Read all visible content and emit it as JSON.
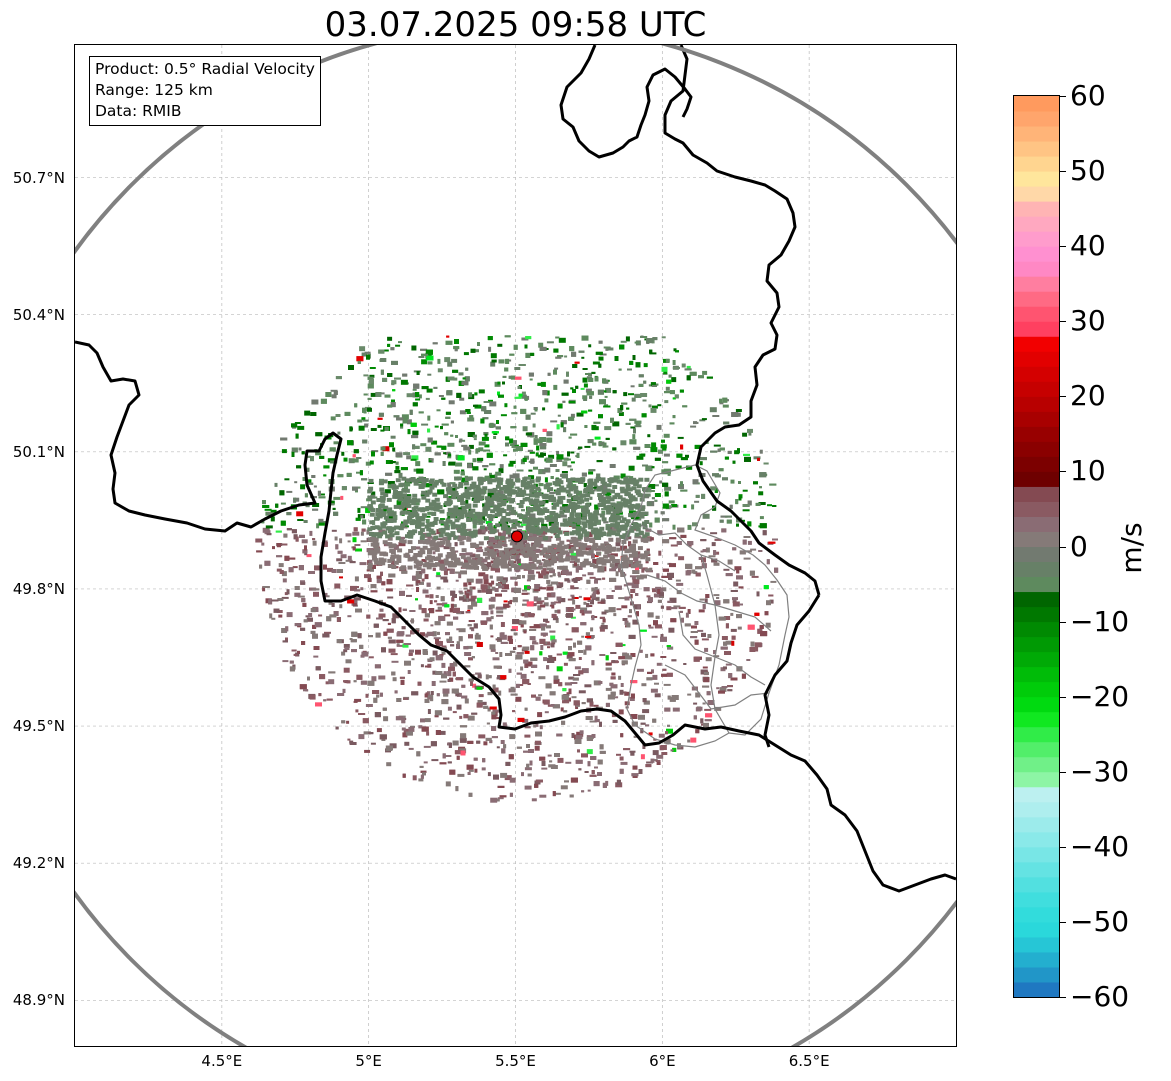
{
  "title": "03.07.2025 09:58 UTC",
  "info_box": {
    "product": "Product: 0.5° Radial Velocity",
    "range": "Range: 125 km",
    "source": "Data: RMIB"
  },
  "map": {
    "extent": {
      "lon_min": 4.0,
      "lon_max": 7.0,
      "lat_min": 48.8,
      "lat_max": 50.99
    },
    "lat_ticks": [
      {
        "value": 50.7,
        "label": "50.7°N"
      },
      {
        "value": 50.4,
        "label": "50.4°N"
      },
      {
        "value": 50.1,
        "label": "50.1°N"
      },
      {
        "value": 49.8,
        "label": "49.8°N"
      },
      {
        "value": 49.5,
        "label": "49.5°N"
      },
      {
        "value": 49.2,
        "label": "49.2°N"
      },
      {
        "value": 48.9,
        "label": "48.9°N"
      }
    ],
    "lon_ticks": [
      {
        "value": 4.5,
        "label": "4.5°E"
      },
      {
        "value": 5.0,
        "label": "5°E"
      },
      {
        "value": 5.5,
        "label": "5.5°E"
      },
      {
        "value": 6.0,
        "label": "6°E"
      },
      {
        "value": 6.5,
        "label": "6.5°E"
      }
    ],
    "gridlines": true,
    "radar_site": {
      "lon": 5.505,
      "lat": 49.915,
      "color": "#e00000"
    },
    "range_ring_color": "#808080",
    "border_color": "#000000",
    "admin_border_color": "#808080"
  },
  "colorbar": {
    "unit": "m/s",
    "min": -60,
    "max": 60,
    "ticks": [
      {
        "value": 60,
        "label": "60"
      },
      {
        "value": 50,
        "label": "50"
      },
      {
        "value": 40,
        "label": "40"
      },
      {
        "value": 30,
        "label": "30"
      },
      {
        "value": 20,
        "label": "20"
      },
      {
        "value": 10,
        "label": "10"
      },
      {
        "value": 0,
        "label": "0"
      },
      {
        "value": -10,
        "label": "−10"
      },
      {
        "value": -20,
        "label": "−20"
      },
      {
        "value": -30,
        "label": "−30"
      },
      {
        "value": -40,
        "label": "−40"
      },
      {
        "value": -50,
        "label": "−50"
      },
      {
        "value": -60,
        "label": "−60"
      }
    ],
    "bins": [
      {
        "from": -60,
        "to": -58,
        "color": "#1f78c1"
      },
      {
        "from": -58,
        "to": -56,
        "color": "#2196c8"
      },
      {
        "from": -56,
        "to": -54,
        "color": "#23afcf"
      },
      {
        "from": -54,
        "to": -52,
        "color": "#26c6d6"
      },
      {
        "from": -52,
        "to": -50,
        "color": "#2ad8db"
      },
      {
        "from": -50,
        "to": -48,
        "color": "#32dcdc"
      },
      {
        "from": -48,
        "to": -46,
        "color": "#40dede"
      },
      {
        "from": -46,
        "to": -44,
        "color": "#52e0e0"
      },
      {
        "from": -44,
        "to": -42,
        "color": "#64e3e3"
      },
      {
        "from": -42,
        "to": -40,
        "color": "#78e6e6"
      },
      {
        "from": -40,
        "to": -38,
        "color": "#8ae9e9"
      },
      {
        "from": -38,
        "to": -36,
        "color": "#9cebeb"
      },
      {
        "from": -36,
        "to": -34,
        "color": "#aeeeee"
      },
      {
        "from": -34,
        "to": -32,
        "color": "#bcf0f0"
      },
      {
        "from": -32,
        "to": -30,
        "color": "#8df5a5"
      },
      {
        "from": -30,
        "to": -28,
        "color": "#70f088"
      },
      {
        "from": -28,
        "to": -26,
        "color": "#52ee6a"
      },
      {
        "from": -26,
        "to": -24,
        "color": "#30ec48"
      },
      {
        "from": -24,
        "to": -22,
        "color": "#10e820"
      },
      {
        "from": -22,
        "to": -20,
        "color": "#00da10"
      },
      {
        "from": -20,
        "to": -18,
        "color": "#00cc0a"
      },
      {
        "from": -18,
        "to": -16,
        "color": "#00bc08"
      },
      {
        "from": -16,
        "to": -14,
        "color": "#00aa06"
      },
      {
        "from": -14,
        "to": -12,
        "color": "#009a04"
      },
      {
        "from": -12,
        "to": -10,
        "color": "#008a02"
      },
      {
        "from": -10,
        "to": -8,
        "color": "#007800"
      },
      {
        "from": -8,
        "to": -6,
        "color": "#006600"
      },
      {
        "from": -6,
        "to": -4,
        "color": "#5e8a5e"
      },
      {
        "from": -4,
        "to": -2,
        "color": "#678067"
      },
      {
        "from": -2,
        "to": 0,
        "color": "#727a70"
      },
      {
        "from": 0,
        "to": 2,
        "color": "#857a78"
      },
      {
        "from": 2,
        "to": 4,
        "color": "#8a6c74"
      },
      {
        "from": 4,
        "to": 6,
        "color": "#8a5a62"
      },
      {
        "from": 6,
        "to": 8,
        "color": "#844a52"
      },
      {
        "from": 8,
        "to": 10,
        "color": "#6e0000"
      },
      {
        "from": 10,
        "to": 12,
        "color": "#7c0000"
      },
      {
        "from": 12,
        "to": 14,
        "color": "#8a0000"
      },
      {
        "from": 14,
        "to": 16,
        "color": "#980000"
      },
      {
        "from": 16,
        "to": 18,
        "color": "#a80000"
      },
      {
        "from": 18,
        "to": 20,
        "color": "#b80000"
      },
      {
        "from": 20,
        "to": 22,
        "color": "#c60000"
      },
      {
        "from": 22,
        "to": 24,
        "color": "#d40000"
      },
      {
        "from": 24,
        "to": 26,
        "color": "#e20000"
      },
      {
        "from": 26,
        "to": 28,
        "color": "#f20000"
      },
      {
        "from": 28,
        "to": 30,
        "color": "#ff4060"
      },
      {
        "from": 30,
        "to": 32,
        "color": "#ff5470"
      },
      {
        "from": 32,
        "to": 34,
        "color": "#ff6a84"
      },
      {
        "from": 34,
        "to": 36,
        "color": "#ff7ea0"
      },
      {
        "from": 36,
        "to": 38,
        "color": "#ff88c4"
      },
      {
        "from": 38,
        "to": 40,
        "color": "#ff90d0"
      },
      {
        "from": 40,
        "to": 42,
        "color": "#ff9ccc"
      },
      {
        "from": 42,
        "to": 44,
        "color": "#ffa8c0"
      },
      {
        "from": 44,
        "to": 46,
        "color": "#ffb4b4"
      },
      {
        "from": 46,
        "to": 48,
        "color": "#ffd8a8"
      },
      {
        "from": 48,
        "to": 50,
        "color": "#ffe69c"
      },
      {
        "from": 50,
        "to": 52,
        "color": "#ffd590"
      },
      {
        "from": 52,
        "to": 54,
        "color": "#ffc484"
      },
      {
        "from": 54,
        "to": 56,
        "color": "#ffb478"
      },
      {
        "from": 56,
        "to": 58,
        "color": "#ffa56c"
      },
      {
        "from": 58,
        "to": 60,
        "color": "#ff9a5e"
      }
    ]
  }
}
